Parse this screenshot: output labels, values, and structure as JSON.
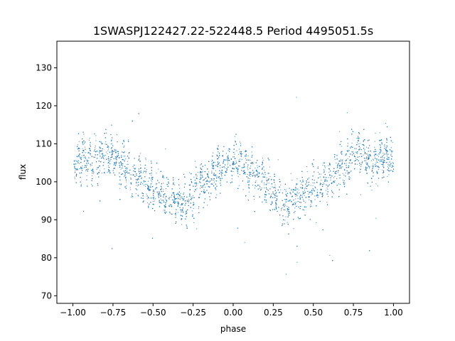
{
  "chart_data": {
    "type": "scatter",
    "title": "1SWASPJ122427.22-522448.5 Period 4495051.5s",
    "xlabel": "phase",
    "ylabel": "flux",
    "xlim": [
      -1.1,
      1.1
    ],
    "ylim": [
      68,
      137
    ],
    "xticks": [
      -1.0,
      -0.75,
      -0.5,
      -0.25,
      0.0,
      0.25,
      0.5,
      0.75,
      1.0
    ],
    "xtick_labels": [
      "−1.00",
      "−0.75",
      "−0.50",
      "−0.25",
      "0.00",
      "0.25",
      "0.50",
      "0.75",
      "1.00"
    ],
    "yticks": [
      70,
      80,
      90,
      100,
      110,
      120,
      130
    ],
    "ytick_labels": [
      "70",
      "80",
      "90",
      "100",
      "110",
      "120",
      "130"
    ],
    "grid": false,
    "marker_color": "#1f77b4",
    "series": [
      {
        "phase_range": [
          -1.0,
          1.0
        ],
        "note_profile": "folded light curve mirrored at phase 0",
        "profile": [
          {
            "x": -1.0,
            "y": 105
          },
          {
            "x": -0.95,
            "y": 107
          },
          {
            "x": -0.9,
            "y": 106
          },
          {
            "x": -0.85,
            "y": 105
          },
          {
            "x": -0.8,
            "y": 108
          },
          {
            "x": -0.75,
            "y": 107
          },
          {
            "x": -0.7,
            "y": 105
          },
          {
            "x": -0.65,
            "y": 103
          },
          {
            "x": -0.6,
            "y": 101
          },
          {
            "x": -0.55,
            "y": 100
          },
          {
            "x": -0.5,
            "y": 98
          },
          {
            "x": -0.45,
            "y": 97
          },
          {
            "x": -0.4,
            "y": 96
          },
          {
            "x": -0.35,
            "y": 95
          },
          {
            "x": -0.3,
            "y": 94
          },
          {
            "x": -0.25,
            "y": 97
          },
          {
            "x": -0.2,
            "y": 100
          },
          {
            "x": -0.15,
            "y": 101
          },
          {
            "x": -0.1,
            "y": 103
          },
          {
            "x": -0.05,
            "y": 105
          },
          {
            "x": 0.0,
            "y": 105
          }
        ]
      }
    ]
  }
}
